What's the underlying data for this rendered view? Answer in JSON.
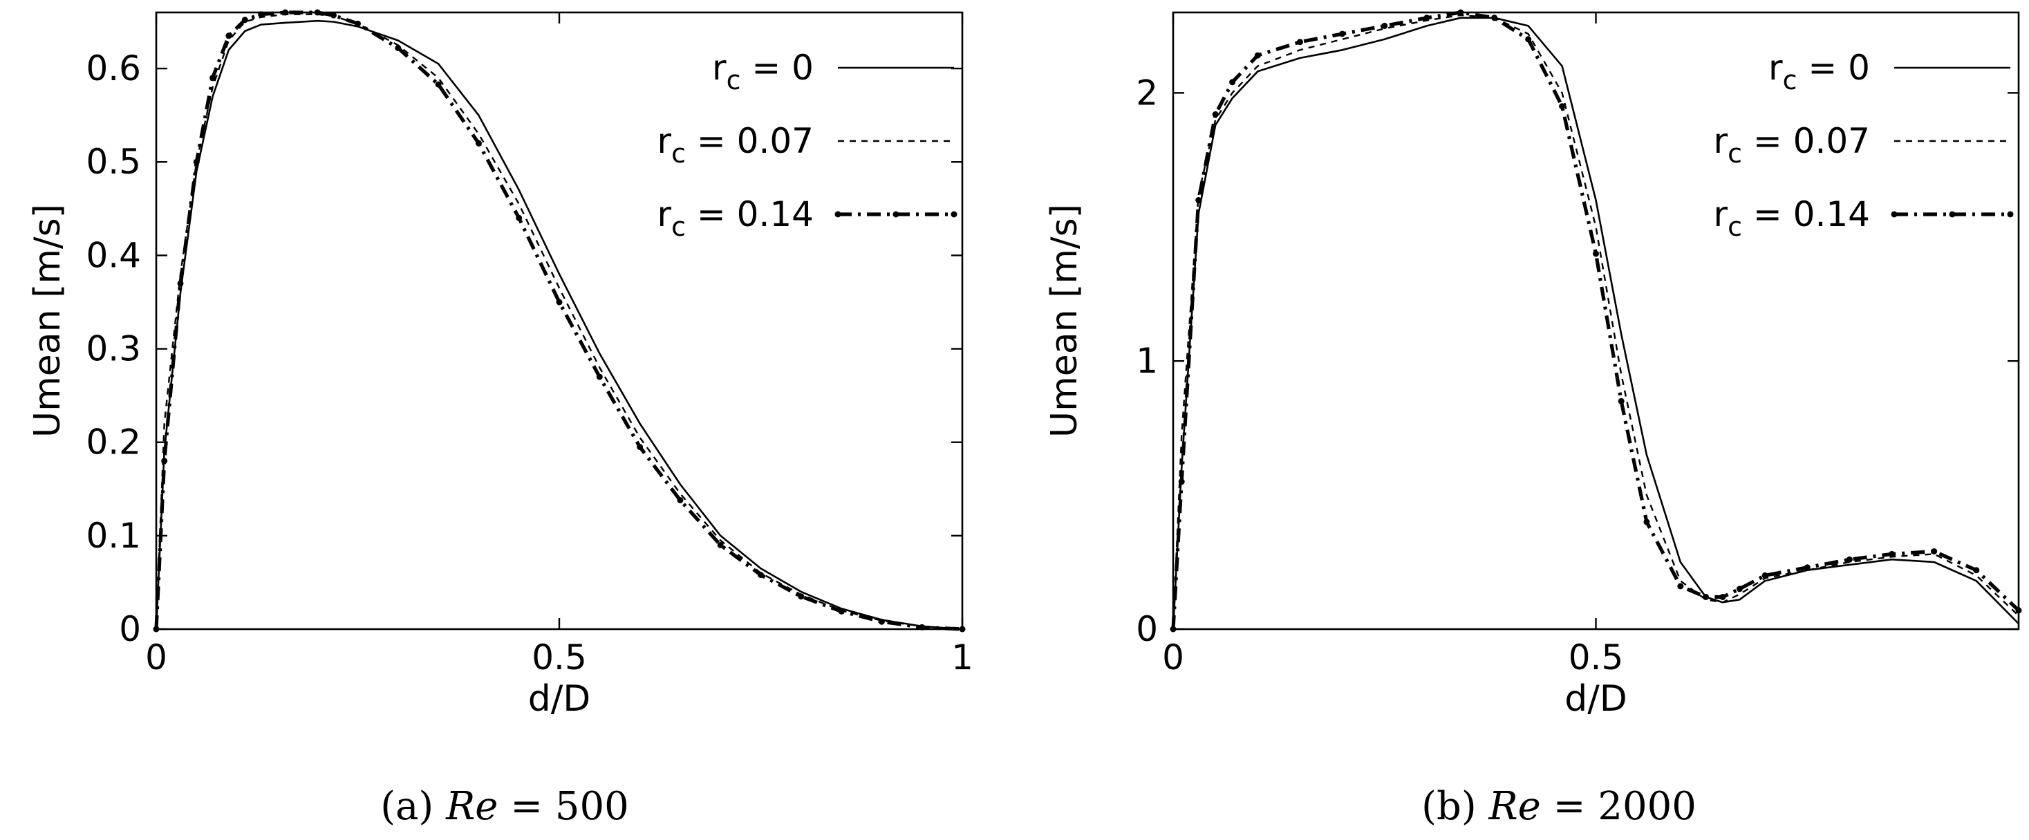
{
  "chart_data": [
    {
      "type": "line",
      "caption_prefix": "(a)",
      "caption_var": "Re",
      "caption_value": "= 500",
      "xlabel": "d/D",
      "ylabel": "Umean [m/s]",
      "xlim": [
        0,
        1
      ],
      "ylim": [
        0,
        0.66
      ],
      "xticks": [
        0,
        0.5,
        1
      ],
      "xtick_labels": [
        "0",
        "0.5",
        "1"
      ],
      "yticks": [
        0,
        0.1,
        0.2,
        0.3,
        0.4,
        0.5,
        0.6
      ],
      "ytick_labels": [
        "0",
        "0.1",
        "0.2",
        "0.3",
        "0.4",
        "0.5",
        "0.6"
      ],
      "grid": false,
      "legend_position": "top-right",
      "series": [
        {
          "name": "rc = 0",
          "name_main": "r",
          "name_sub": "c",
          "name_rest": " = 0",
          "style": "solid",
          "x": [
            0,
            0.01,
            0.03,
            0.05,
            0.07,
            0.09,
            0.11,
            0.13,
            0.16,
            0.2,
            0.22,
            0.25,
            0.3,
            0.35,
            0.4,
            0.45,
            0.5,
            0.55,
            0.6,
            0.65,
            0.7,
            0.75,
            0.8,
            0.85,
            0.9,
            0.95,
            1.0
          ],
          "y": [
            0,
            0.19,
            0.36,
            0.49,
            0.57,
            0.62,
            0.64,
            0.647,
            0.649,
            0.651,
            0.65,
            0.645,
            0.63,
            0.605,
            0.55,
            0.47,
            0.38,
            0.295,
            0.22,
            0.155,
            0.1,
            0.065,
            0.04,
            0.022,
            0.01,
            0.003,
            0.0
          ]
        },
        {
          "name": "rc = 0.07",
          "name_main": "r",
          "name_sub": "c",
          "name_rest": " = 0.07",
          "style": "dashed",
          "x": [
            0,
            0.01,
            0.03,
            0.05,
            0.07,
            0.09,
            0.11,
            0.13,
            0.16,
            0.2,
            0.22,
            0.25,
            0.3,
            0.35,
            0.4,
            0.45,
            0.5,
            0.55,
            0.6,
            0.65,
            0.7,
            0.75,
            0.8,
            0.85,
            0.9,
            0.95,
            1.0
          ],
          "y": [
            0,
            0.22,
            0.38,
            0.5,
            0.58,
            0.63,
            0.65,
            0.655,
            0.658,
            0.658,
            0.656,
            0.648,
            0.625,
            0.59,
            0.53,
            0.455,
            0.365,
            0.28,
            0.205,
            0.145,
            0.095,
            0.06,
            0.037,
            0.02,
            0.009,
            0.003,
            0.0
          ]
        },
        {
          "name": "rc = 0.14",
          "name_main": "r",
          "name_sub": "c",
          "name_rest": " = 0.14",
          "style": "dashdot-points",
          "x": [
            0,
            0.01,
            0.03,
            0.05,
            0.07,
            0.09,
            0.11,
            0.13,
            0.16,
            0.2,
            0.22,
            0.25,
            0.3,
            0.35,
            0.4,
            0.45,
            0.5,
            0.55,
            0.6,
            0.65,
            0.7,
            0.75,
            0.8,
            0.85,
            0.9,
            0.95,
            1.0
          ],
          "y": [
            0,
            0.18,
            0.37,
            0.5,
            0.59,
            0.635,
            0.652,
            0.658,
            0.66,
            0.66,
            0.657,
            0.648,
            0.622,
            0.583,
            0.52,
            0.44,
            0.35,
            0.27,
            0.195,
            0.138,
            0.09,
            0.058,
            0.035,
            0.019,
            0.008,
            0.002,
            0.0
          ]
        }
      ]
    },
    {
      "type": "line",
      "caption_prefix": "(b)",
      "caption_var": "Re",
      "caption_value": "= 2000",
      "xlabel": "d/D",
      "ylabel": "Umean [m/s]",
      "xlim": [
        0,
        1
      ],
      "ylim": [
        0,
        2.3
      ],
      "xticks": [
        0,
        0.5
      ],
      "xtick_labels": [
        "0",
        "0.5"
      ],
      "yticks": [
        0,
        1,
        2
      ],
      "ytick_labels": [
        "0",
        "1",
        "2"
      ],
      "grid": false,
      "legend_position": "top-right",
      "series": [
        {
          "name": "rc = 0",
          "name_main": "r",
          "name_sub": "c",
          "name_rest": " = 0",
          "style": "solid",
          "x": [
            0,
            0.01,
            0.03,
            0.05,
            0.07,
            0.1,
            0.15,
            0.2,
            0.25,
            0.3,
            0.34,
            0.38,
            0.42,
            0.46,
            0.5,
            0.53,
            0.56,
            0.6,
            0.63,
            0.65,
            0.67,
            0.7,
            0.75,
            0.8,
            0.85,
            0.9,
            0.95,
            1.0
          ],
          "y": [
            0,
            0.6,
            1.55,
            1.88,
            1.98,
            2.08,
            2.13,
            2.16,
            2.2,
            2.25,
            2.28,
            2.28,
            2.25,
            2.1,
            1.6,
            1.1,
            0.65,
            0.25,
            0.12,
            0.1,
            0.11,
            0.18,
            0.22,
            0.24,
            0.26,
            0.25,
            0.18,
            0.02
          ]
        },
        {
          "name": "rc = 0.07",
          "name_main": "r",
          "name_sub": "c",
          "name_rest": " = 0.07",
          "style": "dashed",
          "x": [
            0,
            0.01,
            0.03,
            0.05,
            0.07,
            0.1,
            0.15,
            0.2,
            0.25,
            0.3,
            0.34,
            0.38,
            0.42,
            0.46,
            0.5,
            0.53,
            0.56,
            0.6,
            0.63,
            0.65,
            0.67,
            0.7,
            0.75,
            0.8,
            0.85,
            0.9,
            0.95,
            1.0
          ],
          "y": [
            0,
            0.72,
            1.62,
            1.9,
            2.0,
            2.1,
            2.16,
            2.2,
            2.24,
            2.27,
            2.29,
            2.28,
            2.22,
            2.0,
            1.5,
            0.95,
            0.5,
            0.18,
            0.11,
            0.1,
            0.13,
            0.19,
            0.22,
            0.25,
            0.27,
            0.28,
            0.2,
            0.05
          ]
        },
        {
          "name": "rc = 0.14",
          "name_main": "r",
          "name_sub": "c",
          "name_rest": " = 0.14",
          "style": "dashdot-points",
          "x": [
            0,
            0.01,
            0.03,
            0.05,
            0.07,
            0.1,
            0.15,
            0.2,
            0.25,
            0.3,
            0.34,
            0.38,
            0.42,
            0.46,
            0.5,
            0.53,
            0.56,
            0.6,
            0.63,
            0.65,
            0.67,
            0.7,
            0.75,
            0.8,
            0.85,
            0.9,
            0.95,
            1.0
          ],
          "y": [
            0,
            0.55,
            1.6,
            1.92,
            2.04,
            2.14,
            2.19,
            2.22,
            2.25,
            2.28,
            2.3,
            2.28,
            2.2,
            1.95,
            1.4,
            0.85,
            0.4,
            0.16,
            0.12,
            0.12,
            0.15,
            0.2,
            0.23,
            0.26,
            0.28,
            0.29,
            0.22,
            0.07
          ]
        }
      ]
    }
  ]
}
